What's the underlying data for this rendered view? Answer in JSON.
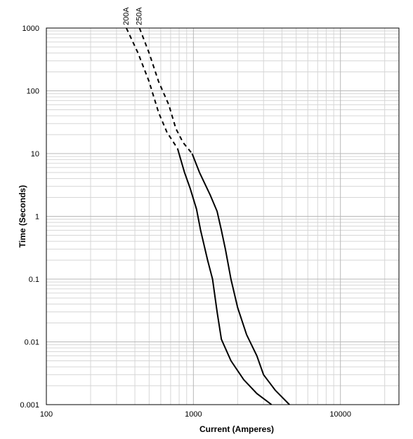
{
  "chart_data": {
    "type": "line",
    "title": "",
    "xlabel": "Current  (Amperes)",
    "ylabel": "Time (Seconds)",
    "xscale": "log",
    "yscale": "log",
    "xlim": [
      100,
      25000
    ],
    "ylim": [
      0.001,
      1000
    ],
    "xticks": [
      {
        "value": 100,
        "label": "100"
      },
      {
        "value": 1000,
        "label": "1000"
      },
      {
        "value": 10000,
        "label": "10000"
      }
    ],
    "yticks": [
      {
        "value": 0.001,
        "label": "0.001"
      },
      {
        "value": 0.01,
        "label": "0.01"
      },
      {
        "value": 0.1,
        "label": "0.1"
      },
      {
        "value": 1,
        "label": "1"
      },
      {
        "value": 10,
        "label": "10"
      },
      {
        "value": 100,
        "label": "100"
      },
      {
        "value": 1000,
        "label": "1000"
      }
    ],
    "grid": true,
    "legend": "none",
    "series": [
      {
        "name": "200A",
        "color": "#000000",
        "dashed_points": [
          [
            350,
            1000
          ],
          [
            420,
            400
          ],
          [
            500,
            140
          ],
          [
            580,
            45
          ],
          [
            660,
            22
          ],
          [
            780,
            12
          ]
        ],
        "solid_points": [
          [
            780,
            12
          ],
          [
            870,
            5
          ],
          [
            950,
            2.8
          ],
          [
            1050,
            1.3
          ],
          [
            1120,
            0.6
          ],
          [
            1250,
            0.2
          ],
          [
            1350,
            0.1
          ],
          [
            1450,
            0.03
          ],
          [
            1550,
            0.011
          ],
          [
            1800,
            0.005
          ],
          [
            2200,
            0.0025
          ],
          [
            2700,
            0.0015
          ],
          [
            3400,
            0.001
          ]
        ]
      },
      {
        "name": "250A",
        "color": "#000000",
        "dashed_points": [
          [
            430,
            1000
          ],
          [
            500,
            400
          ],
          [
            580,
            140
          ],
          [
            680,
            60
          ],
          [
            760,
            25
          ],
          [
            850,
            15
          ],
          [
            980,
            10
          ]
        ],
        "solid_points": [
          [
            980,
            10
          ],
          [
            1100,
            5
          ],
          [
            1300,
            2.2
          ],
          [
            1450,
            1.2
          ],
          [
            1550,
            0.6
          ],
          [
            1650,
            0.3
          ],
          [
            1800,
            0.1
          ],
          [
            2000,
            0.035
          ],
          [
            2300,
            0.013
          ],
          [
            2700,
            0.006
          ],
          [
            3000,
            0.003
          ],
          [
            3600,
            0.0017
          ],
          [
            4500,
            0.001
          ]
        ]
      }
    ]
  }
}
